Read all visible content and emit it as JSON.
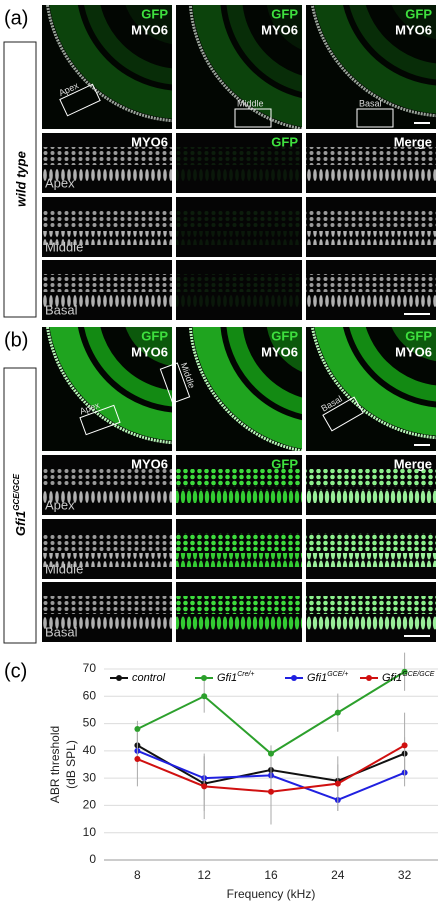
{
  "panel_a": {
    "label": "(a)",
    "group": "wild type",
    "overview": [
      {
        "channels": [
          "GFP",
          "MYO6"
        ],
        "region": "Apex"
      },
      {
        "channels": [
          "GFP",
          "MYO6"
        ],
        "region": "Middle"
      },
      {
        "channels": [
          "GFP",
          "MYO6"
        ],
        "region": "Basal"
      }
    ],
    "detail_headers": [
      "MYO6",
      "GFP",
      "Merge"
    ],
    "rows": [
      "Apex",
      "Middle",
      "Basal"
    ]
  },
  "panel_b": {
    "label": "(b)",
    "group": {
      "text": "Gfi1",
      "superscript": "GCE/GCE"
    },
    "overview": [
      {
        "channels": [
          "GFP",
          "MYO6"
        ],
        "region": "Apex"
      },
      {
        "channels": [
          "GFP",
          "MYO6"
        ],
        "region": "Middle"
      },
      {
        "channels": [
          "GFP",
          "MYO6"
        ],
        "region": "Basal"
      }
    ],
    "detail_headers": [
      "MYO6",
      "GFP",
      "Merge"
    ],
    "rows": [
      "Apex",
      "Middle",
      "Basal"
    ]
  },
  "panel_c": {
    "label": "(c)"
  },
  "chart_data": {
    "type": "line",
    "ylabel": [
      "ABR threshold",
      "(dB SPL)"
    ],
    "xlabel": "Frequency (kHz)",
    "categories": [
      "8",
      "12",
      "16",
      "24",
      "32"
    ],
    "ylim": [
      0,
      70
    ],
    "yticks": [
      0,
      10,
      20,
      30,
      40,
      50,
      60,
      70
    ],
    "grid": true,
    "series": [
      {
        "name": "control",
        "color": "#111111",
        "values": [
          42,
          28,
          33,
          29,
          39
        ],
        "errors": [
          5,
          10,
          3,
          6,
          6
        ]
      },
      {
        "name": "Gfi1",
        "superscript": "Cre/+",
        "color": "#2ca02c",
        "values": [
          48,
          60,
          39,
          54,
          69
        ],
        "errors": [
          3,
          6,
          3,
          7,
          7
        ]
      },
      {
        "name": "Gfi1",
        "superscript": "GCE/+",
        "color": "#2020e0",
        "values": [
          40,
          30,
          31,
          22,
          32
        ],
        "errors": [
          5,
          8,
          4,
          4,
          5
        ]
      },
      {
        "name": "Gfi1",
        "superscript": "GCE/GCE",
        "color": "#d01010",
        "values": [
          37,
          27,
          25,
          28,
          42
        ],
        "errors": [
          10,
          12,
          12,
          10,
          12
        ]
      }
    ]
  }
}
